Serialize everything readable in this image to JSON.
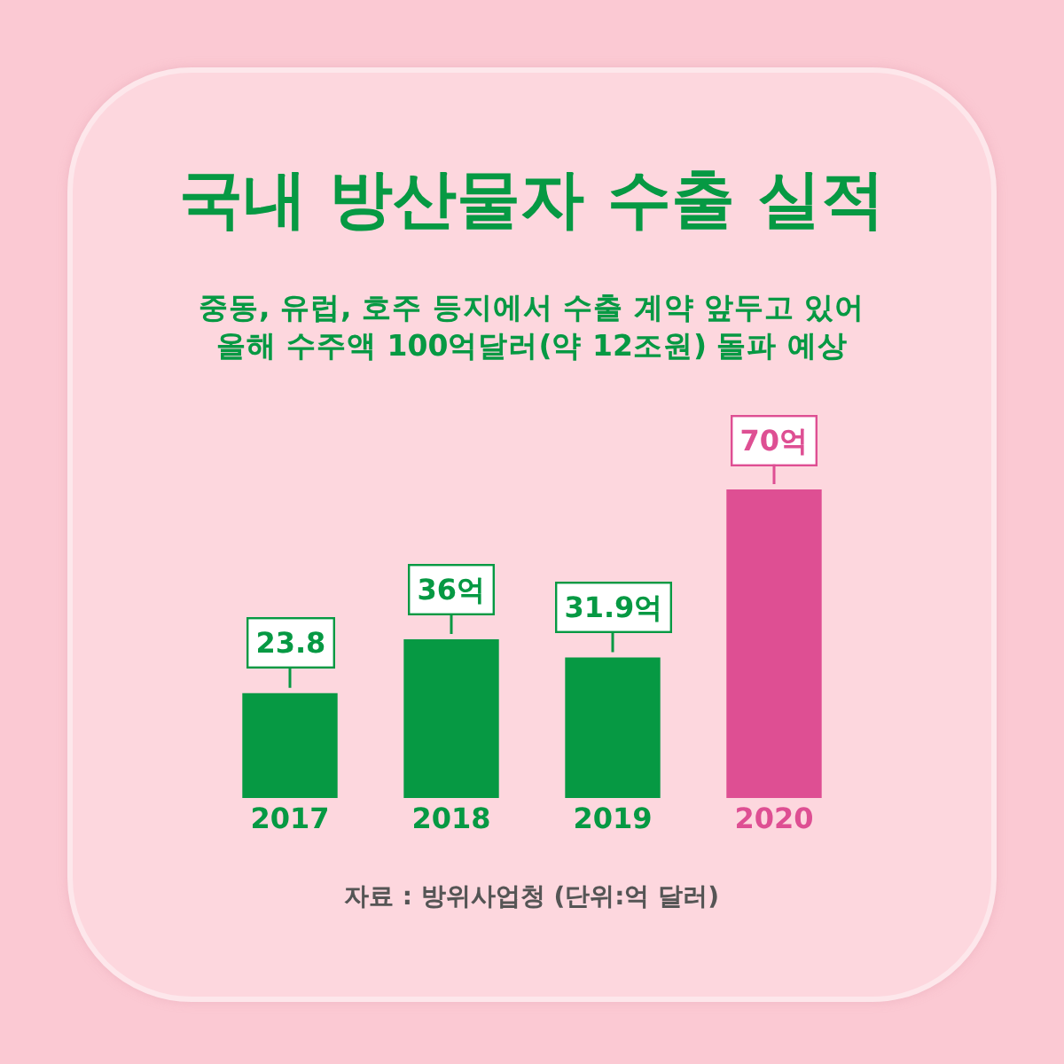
{
  "chart_data": {
    "type": "bar",
    "title": "국내 방산물자 수출 실적",
    "subtitle": "중동, 유럽, 호주 등지에서 수출 계약 앞두고 있어\n올해 수주액 100억달러(약 12조원) 돌파 예상",
    "categories": [
      "2017",
      "2018",
      "2019",
      "2020"
    ],
    "values": [
      23.8,
      36,
      31.9,
      70
    ],
    "colors": [
      "#069943",
      "#069943",
      "#069943",
      "#de4f93"
    ],
    "value_labels": [
      "23.8",
      "36억",
      "31.9억",
      "70억"
    ],
    "annotations": [
      "자료 : 방위사업청 (단위:억 달러)"
    ]
  }
}
